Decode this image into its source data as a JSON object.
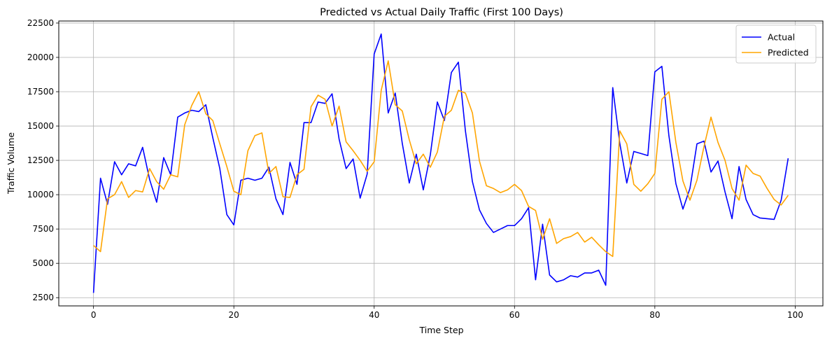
{
  "chart_data": {
    "type": "line",
    "title": "Predicted vs Actual Daily Traffic (First 100 Days)",
    "xlabel": "Time Step",
    "ylabel": "Traffic Volume",
    "xlim": [
      -4.95,
      103.95
    ],
    "ylim": [
      1900,
      22650
    ],
    "xticks": [
      0,
      20,
      40,
      60,
      80,
      100
    ],
    "yticks": [
      2500,
      5000,
      7500,
      10000,
      12500,
      15000,
      17500,
      20000,
      22500
    ],
    "grid": true,
    "legend": "top-right",
    "x": [
      0,
      1,
      2,
      3,
      4,
      5,
      6,
      7,
      8,
      9,
      10,
      11,
      12,
      13,
      14,
      15,
      16,
      17,
      18,
      19,
      20,
      21,
      22,
      23,
      24,
      25,
      26,
      27,
      28,
      29,
      30,
      31,
      32,
      33,
      34,
      35,
      36,
      37,
      38,
      39,
      40,
      41,
      42,
      43,
      44,
      45,
      46,
      47,
      48,
      49,
      50,
      51,
      52,
      53,
      54,
      55,
      56,
      57,
      58,
      59,
      60,
      61,
      62,
      63,
      64,
      65,
      66,
      67,
      68,
      69,
      70,
      71,
      72,
      73,
      74,
      75,
      76,
      77,
      78,
      79,
      80,
      81,
      82,
      83,
      84,
      85,
      86,
      87,
      88,
      89,
      90,
      91,
      92,
      93,
      94,
      95,
      96,
      97,
      98,
      99
    ],
    "series": [
      {
        "name": "Actual",
        "color": "#0000ff",
        "values": [
          2850,
          11200,
          9300,
          12400,
          11450,
          12250,
          12100,
          13450,
          11100,
          9450,
          12700,
          11450,
          15650,
          15950,
          16150,
          16050,
          16550,
          14150,
          11900,
          8550,
          7800,
          11050,
          11200,
          11050,
          11200,
          12000,
          9700,
          8550,
          12350,
          10750,
          15250,
          15250,
          16750,
          16650,
          17350,
          14050,
          11900,
          12600,
          9750,
          11500,
          20250,
          21700,
          15950,
          17400,
          13750,
          10850,
          12950,
          10350,
          12900,
          16750,
          15400,
          18900,
          19650,
          14650,
          10950,
          8900,
          7900,
          7250,
          7500,
          7750,
          7750,
          8250,
          9050,
          3800,
          7850,
          4150,
          3650,
          3800,
          4100,
          4000,
          4300,
          4300,
          4500,
          3400,
          17800,
          13750,
          10850,
          13150,
          13000,
          12850,
          18950,
          19350,
          14300,
          10800,
          8950,
          10450,
          13700,
          13900,
          11650,
          12450,
          10200,
          8250,
          12050,
          9650,
          8550,
          8300,
          8250,
          8200,
          9600,
          12650
        ]
      },
      {
        "name": "Predicted",
        "color": "#ffa500",
        "values": [
          6300,
          5850,
          9700,
          10000,
          10950,
          9800,
          10300,
          10200,
          11900,
          10950,
          10400,
          11450,
          11300,
          15100,
          16500,
          17500,
          15900,
          15400,
          13700,
          12050,
          10250,
          10000,
          13200,
          14300,
          14500,
          11550,
          12050,
          9850,
          9800,
          11450,
          11850,
          16400,
          17250,
          16950,
          15000,
          16450,
          13850,
          13200,
          12500,
          11700,
          12400,
          17600,
          19750,
          16550,
          16100,
          14000,
          12250,
          12950,
          12000,
          13100,
          15700,
          16150,
          17600,
          17400,
          15950,
          12450,
          10650,
          10450,
          10150,
          10350,
          10750,
          10300,
          9150,
          8850,
          6750,
          8250,
          6450,
          6800,
          6950,
          7250,
          6550,
          6900,
          6350,
          5850,
          5500,
          14650,
          13700,
          10750,
          10250,
          10800,
          11550,
          16950,
          17500,
          13800,
          11000,
          9600,
          11050,
          13500,
          15650,
          13800,
          12500,
          10450,
          9600,
          12150,
          11550,
          11350,
          10450,
          9650,
          9250,
          9950
        ]
      }
    ]
  }
}
